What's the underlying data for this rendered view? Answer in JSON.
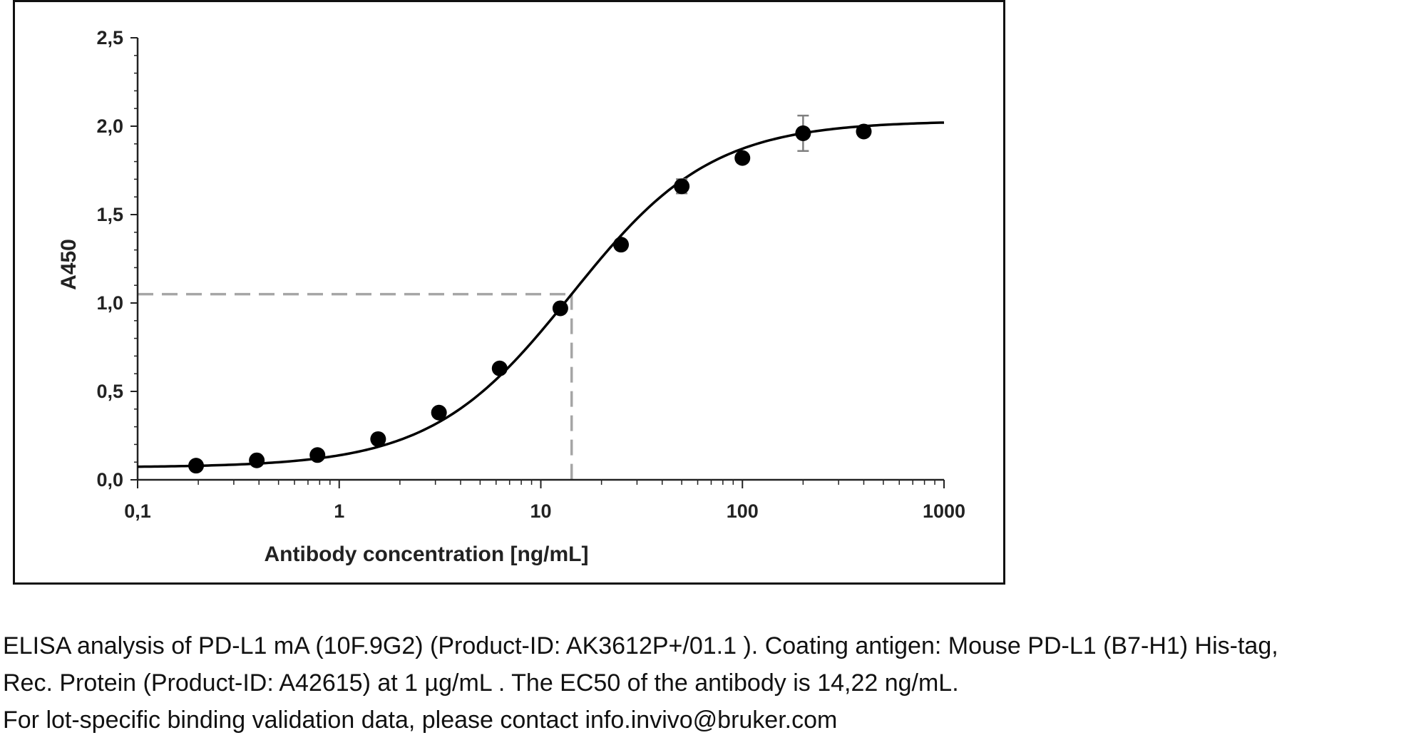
{
  "chart_data": {
    "type": "scatter",
    "xlabel": "Antibody concentration [ng/mL]",
    "ylabel": "A450",
    "xscale": "log",
    "xlim": [
      0.1,
      1000
    ],
    "ylim": [
      0,
      2.5
    ],
    "x_tick_labels": [
      "0,1",
      "1",
      "10",
      "100",
      "1000"
    ],
    "x_tick_values": [
      0.1,
      1,
      10,
      100,
      1000
    ],
    "y_tick_labels": [
      "0,0",
      "0,5",
      "1,0",
      "1,5",
      "2,0",
      "2,5"
    ],
    "y_tick_values": [
      0,
      0.5,
      1.0,
      1.5,
      2.0,
      2.5
    ],
    "grid": false,
    "points": [
      {
        "x": 0.195,
        "y": 0.08,
        "err": 0
      },
      {
        "x": 0.39,
        "y": 0.11,
        "err": 0
      },
      {
        "x": 0.78,
        "y": 0.14,
        "err": 0
      },
      {
        "x": 1.56,
        "y": 0.23,
        "err": 0
      },
      {
        "x": 3.125,
        "y": 0.38,
        "err": 0
      },
      {
        "x": 6.25,
        "y": 0.63,
        "err": 0
      },
      {
        "x": 12.5,
        "y": 0.97,
        "err": 0
      },
      {
        "x": 25,
        "y": 1.33,
        "err": 0
      },
      {
        "x": 50,
        "y": 1.66,
        "err": 0.04
      },
      {
        "x": 100,
        "y": 1.82,
        "err": 0
      },
      {
        "x": 200,
        "y": 1.96,
        "err": 0.1
      },
      {
        "x": 400,
        "y": 1.97,
        "err": 0
      }
    ],
    "fit_curve": {
      "bottom": 0.07,
      "top": 2.03,
      "ec50": 14.22,
      "hill": 1.25
    },
    "ec50_marker": {
      "x": 14.22,
      "y": 1.05
    },
    "colors": {
      "points": "#000000",
      "curve": "#000000",
      "guide": "#a6a6a6",
      "errorbar": "#7f7f7f",
      "axis": "#222222"
    }
  },
  "caption": {
    "line1": "ELISA analysis of PD-L1 mA (10F.9G2) (Product-ID: AK3612P+/01.1 ). Coating antigen: Mouse PD-L1 (B7-H1) His-tag,",
    "line2": "Rec. Protein (Product-ID: A42615) at 1 µg/mL . The EC50 of the antibody is 14,22 ng/mL.",
    "line3": "For lot-specific binding validation data, please contact info.invivo@bruker.com"
  }
}
